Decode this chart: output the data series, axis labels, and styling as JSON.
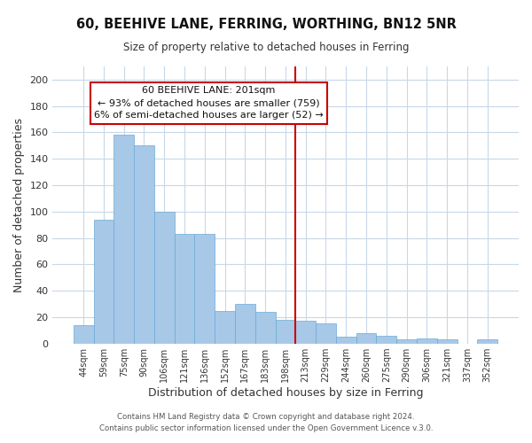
{
  "title": "60, BEEHIVE LANE, FERRING, WORTHING, BN12 5NR",
  "subtitle": "Size of property relative to detached houses in Ferring",
  "xlabel": "Distribution of detached houses by size in Ferring",
  "ylabel": "Number of detached properties",
  "categories": [
    "44sqm",
    "59sqm",
    "75sqm",
    "90sqm",
    "106sqm",
    "121sqm",
    "136sqm",
    "152sqm",
    "167sqm",
    "183sqm",
    "198sqm",
    "213sqm",
    "229sqm",
    "244sqm",
    "260sqm",
    "275sqm",
    "290sqm",
    "306sqm",
    "321sqm",
    "337sqm",
    "352sqm"
  ],
  "values": [
    14,
    94,
    158,
    150,
    100,
    83,
    83,
    25,
    30,
    24,
    18,
    17,
    15,
    5,
    8,
    6,
    3,
    4,
    3,
    0,
    3
  ],
  "bar_color": "#a8c8e8",
  "bar_edge_color": "#6aaad4",
  "vline_color": "#cc0000",
  "vline_x_index": 10,
  "annotation_title": "60 BEEHIVE LANE: 201sqm",
  "annotation_line1": "← 93% of detached houses are smaller (759)",
  "annotation_line2": "6% of semi-detached houses are larger (52) →",
  "annotation_box_color": "#ffffff",
  "annotation_border_color": "#cc0000",
  "ylim": [
    0,
    210
  ],
  "yticks": [
    0,
    20,
    40,
    60,
    80,
    100,
    120,
    140,
    160,
    180,
    200
  ],
  "footer1": "Contains HM Land Registry data © Crown copyright and database right 2024.",
  "footer2": "Contains public sector information licensed under the Open Government Licence v.3.0.",
  "background_color": "#ffffff",
  "grid_color": "#c8d8e8",
  "figsize": [
    6.0,
    5.0
  ],
  "dpi": 100
}
